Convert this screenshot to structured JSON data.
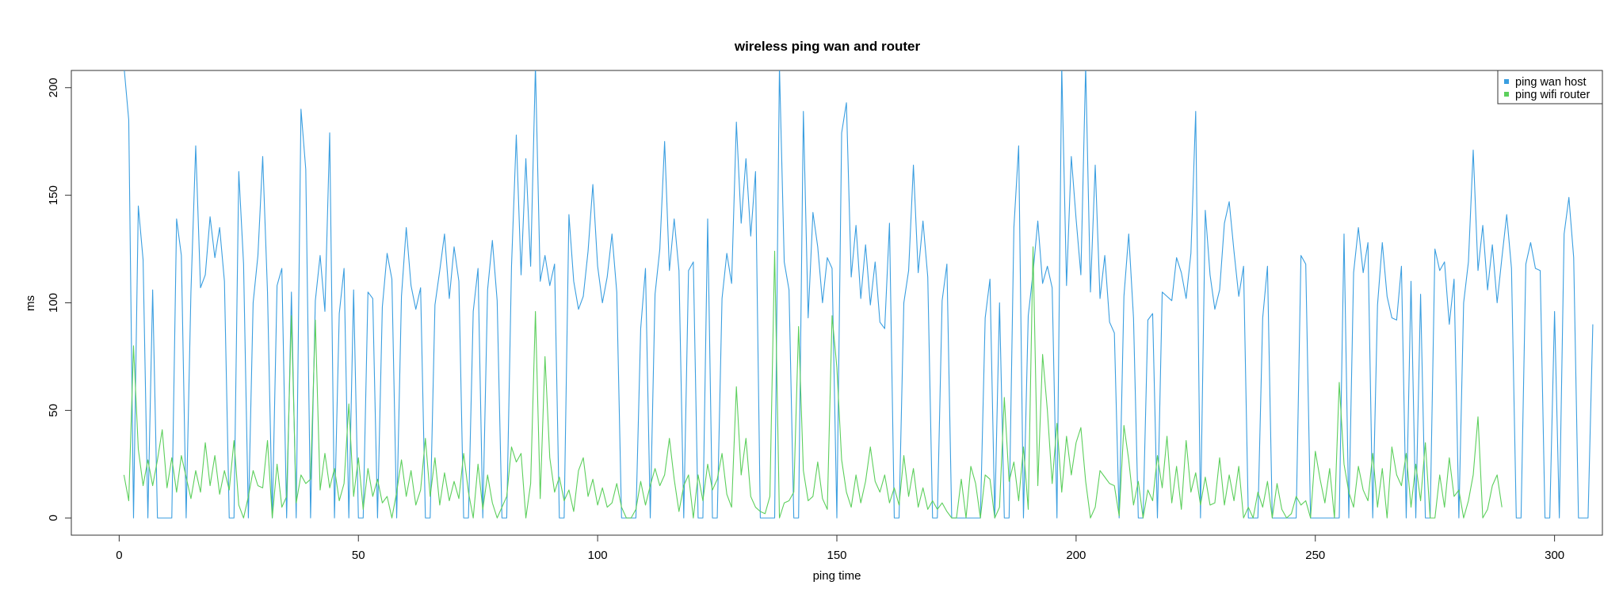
{
  "chart_data": {
    "type": "line",
    "title": "wireless ping wan and router",
    "xlabel": "ping time",
    "ylabel": "ms",
    "xlim": [
      -10,
      310
    ],
    "ylim": [
      -8,
      208
    ],
    "x_ticks": [
      0,
      50,
      100,
      150,
      200,
      250,
      300
    ],
    "y_ticks": [
      0,
      50,
      100,
      150,
      200
    ],
    "grid": false,
    "legend_position": "top-right",
    "x_start": 1,
    "series": [
      {
        "name": "ping wan host",
        "color": "#3a9ee0",
        "values": [
          210,
          185,
          0,
          145,
          120,
          0,
          106,
          0,
          0,
          0,
          0,
          139,
          122,
          0,
          105,
          173,
          107,
          113,
          140,
          121,
          135,
          110,
          0,
          0,
          161,
          118,
          0,
          100,
          122,
          168,
          105,
          0,
          108,
          116,
          0,
          105,
          0,
          190,
          162,
          0,
          101,
          122,
          96,
          179,
          0,
          95,
          116,
          0,
          106,
          0,
          0,
          105,
          102,
          0,
          98,
          123,
          111,
          0,
          103,
          135,
          108,
          97,
          107,
          0,
          0,
          99,
          115,
          132,
          102,
          126,
          110,
          0,
          0,
          96,
          116,
          0,
          106,
          129,
          101,
          0,
          0,
          117,
          178,
          113,
          167,
          117,
          210,
          110,
          122,
          108,
          118,
          0,
          0,
          141,
          110,
          97,
          103,
          124,
          155,
          117,
          100,
          112,
          132,
          105,
          0,
          0,
          0,
          0,
          88,
          116,
          0,
          104,
          125,
          175,
          115,
          139,
          115,
          0,
          115,
          119,
          0,
          0,
          139,
          0,
          0,
          102,
          123,
          109,
          184,
          137,
          167,
          131,
          161,
          0,
          0,
          0,
          0,
          210,
          119,
          106,
          0,
          0,
          189,
          93,
          142,
          126,
          100,
          121,
          116,
          0,
          179,
          193,
          112,
          136,
          102,
          127,
          99,
          119,
          91,
          88,
          137,
          0,
          0,
          100,
          115,
          164,
          114,
          138,
          112,
          0,
          0,
          101,
          118,
          0,
          0,
          0,
          0,
          0,
          0,
          0,
          93,
          111,
          0,
          100,
          0,
          0,
          135,
          173,
          0,
          94,
          114,
          138,
          109,
          117,
          107,
          0,
          210,
          108,
          168,
          139,
          113,
          210,
          105,
          164,
          102,
          122,
          91,
          86,
          0,
          103,
          132,
          93,
          0,
          0,
          92,
          95,
          0,
          105,
          103,
          101,
          121,
          114,
          102,
          123,
          189,
          0,
          143,
          113,
          97,
          106,
          137,
          147,
          124,
          103,
          117,
          0,
          0,
          0,
          93,
          117,
          0,
          0,
          0,
          0,
          0,
          0,
          122,
          118,
          0,
          0,
          0,
          0,
          0,
          0,
          0,
          132,
          0,
          114,
          135,
          114,
          128,
          0,
          99,
          128,
          103,
          93,
          92,
          117,
          0,
          110,
          0,
          104,
          0,
          0,
          125,
          115,
          119,
          90,
          111,
          0,
          100,
          119,
          171,
          115,
          136,
          106,
          127,
          100,
          121,
          141,
          116,
          0,
          0,
          118,
          128,
          116,
          115,
          0,
          0,
          96,
          0,
          132,
          149,
          121,
          0,
          0,
          0,
          90
        ]
      },
      {
        "name": "ping wifi router",
        "color": "#5ccf5c",
        "values": [
          20,
          8,
          80,
          32,
          15,
          27,
          15,
          27,
          41,
          14,
          28,
          12,
          29,
          19,
          9,
          22,
          12,
          35,
          15,
          29,
          11,
          22,
          13,
          36,
          6,
          0,
          10,
          22,
          15,
          14,
          36,
          0,
          25,
          5,
          10,
          94,
          7,
          20,
          16,
          18,
          92,
          13,
          30,
          14,
          23,
          8,
          16,
          53,
          10,
          28,
          4,
          23,
          10,
          18,
          7,
          10,
          0,
          12,
          27,
          10,
          22,
          6,
          13,
          37,
          10,
          28,
          6,
          21,
          8,
          17,
          9,
          30,
          12,
          0,
          25,
          4,
          20,
          7,
          0,
          5,
          10,
          33,
          26,
          30,
          0,
          16,
          96,
          9,
          75,
          28,
          12,
          19,
          8,
          13,
          3,
          22,
          28,
          10,
          18,
          6,
          14,
          5,
          7,
          16,
          5,
          0,
          0,
          4,
          17,
          6,
          15,
          23,
          15,
          20,
          37,
          18,
          3,
          15,
          20,
          0,
          20,
          8,
          25,
          13,
          18,
          30,
          11,
          5,
          61,
          20,
          37,
          10,
          5,
          3,
          2,
          10,
          124,
          0,
          7,
          8,
          12,
          89,
          22,
          8,
          10,
          26,
          9,
          4,
          94,
          70,
          27,
          12,
          5,
          20,
          7,
          17,
          33,
          17,
          12,
          20,
          7,
          14,
          6,
          29,
          10,
          23,
          5,
          14,
          4,
          8,
          4,
          7,
          3,
          0,
          0,
          18,
          0,
          24,
          16,
          0,
          20,
          18,
          0,
          5,
          56,
          17,
          26,
          8,
          33,
          4,
          126,
          15,
          76,
          50,
          16,
          44,
          12,
          38,
          20,
          35,
          42,
          17,
          0,
          5,
          22,
          19,
          16,
          15,
          1,
          43,
          27,
          6,
          17,
          0,
          13,
          8,
          29,
          14,
          38,
          7,
          24,
          4,
          36,
          12,
          21,
          6,
          19,
          6,
          7,
          28,
          6,
          20,
          8,
          24,
          0,
          5,
          0,
          12,
          5,
          17,
          0,
          16,
          4,
          0,
          2,
          10,
          6,
          8,
          0,
          31,
          18,
          7,
          23,
          0,
          63,
          25,
          12,
          5,
          24,
          13,
          8,
          30,
          5,
          23,
          0,
          33,
          20,
          15,
          30,
          5,
          25,
          8,
          35,
          0,
          0,
          20,
          5,
          28,
          10,
          13,
          0,
          8,
          20,
          47,
          0,
          4,
          15,
          20,
          5
        ]
      }
    ]
  }
}
